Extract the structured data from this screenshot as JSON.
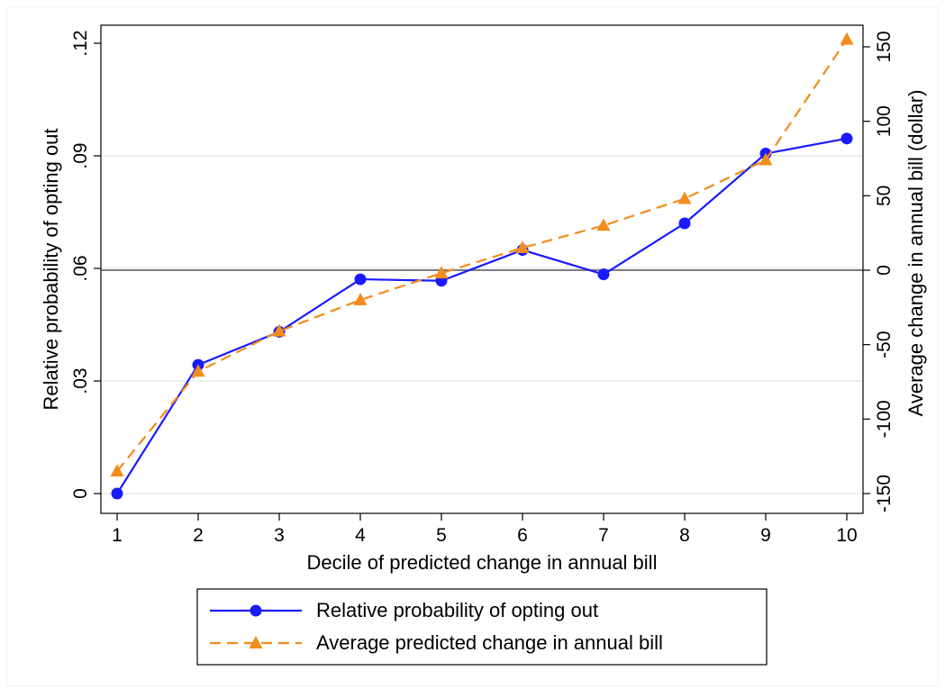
{
  "chart_data": {
    "type": "line",
    "xlabel": "Decile of predicted change in annual bill",
    "ylabel_left": "Relative probability of opting out",
    "ylabel_right": "Average change in annual bill (dollar)",
    "x": [
      1,
      2,
      3,
      4,
      5,
      6,
      7,
      8,
      9,
      10
    ],
    "x_tick_labels": [
      "1",
      "2",
      "3",
      "4",
      "5",
      "6",
      "7",
      "8",
      "9",
      "10"
    ],
    "y_left_ticks": [
      0,
      0.03,
      0.06,
      0.09,
      0.12
    ],
    "y_left_tick_labels": [
      "0",
      ".03",
      ".06",
      ".09",
      ".12"
    ],
    "y_left_range": [
      0,
      0.12
    ],
    "y_right_ticks": [
      -150,
      -100,
      -50,
      0,
      50,
      100,
      150
    ],
    "y_right_tick_labels": [
      "-150",
      "-100",
      "-50",
      "0",
      "50",
      "100",
      "150"
    ],
    "y_right_range": [
      -150,
      150
    ],
    "reference_line_right_y": 0,
    "grid": true,
    "legend_position": "bottom",
    "series": [
      {
        "name": "Relative probability of opting out",
        "axis": "left",
        "color": "#1a1aff",
        "line_style": "solid",
        "marker": "circle",
        "values": [
          0.0,
          0.0343,
          0.0431,
          0.0571,
          0.0567,
          0.0649,
          0.0584,
          0.072,
          0.0906,
          0.0946
        ]
      },
      {
        "name": "Average predicted change in annual bill",
        "axis": "right",
        "color": "#f28c1c",
        "line_style": "dashed",
        "marker": "triangle",
        "values": [
          -135,
          -68,
          -41,
          -20,
          -2,
          15,
          30,
          48,
          74,
          155
        ]
      }
    ]
  }
}
